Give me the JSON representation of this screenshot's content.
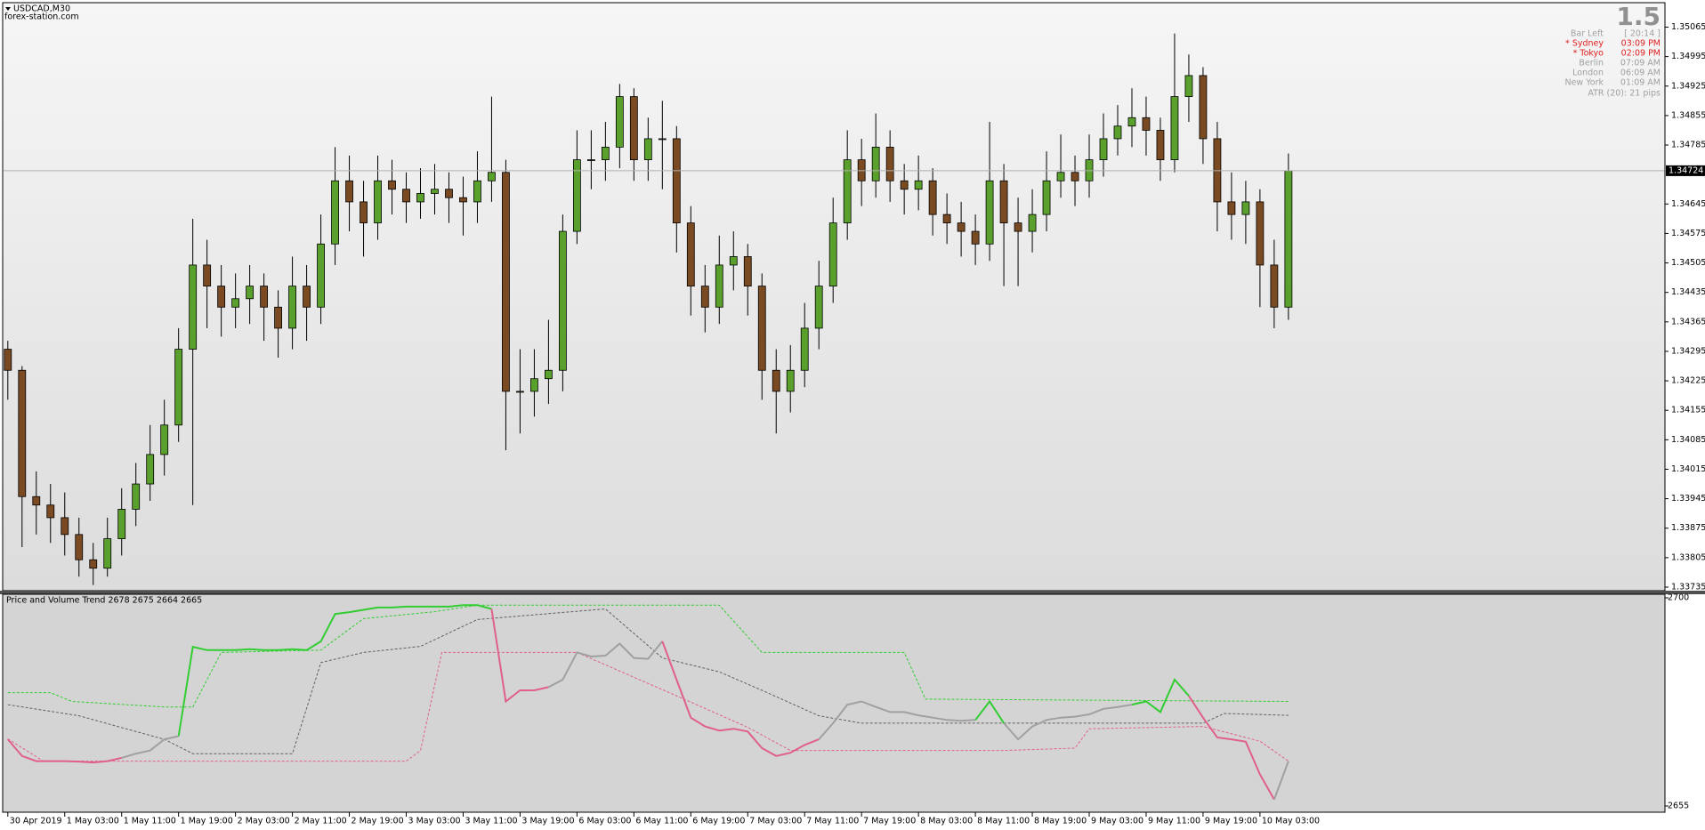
{
  "chart_data": [
    {
      "type": "candlestick",
      "title": "USDCAD,M30",
      "subtitle": "forex-station.com",
      "bull_color": "#5aa02c",
      "bear_color": "#7a4a22",
      "wick_color": "#000000",
      "xlim": [
        -0.3,
        116.4
      ],
      "ylim": [
        1.33735,
        1.35121
      ],
      "yticks": [
        1.33735,
        1.33805,
        1.33875,
        1.33945,
        1.34015,
        1.34085,
        1.34155,
        1.34225,
        1.34295,
        1.34365,
        1.34435,
        1.34505,
        1.34575,
        1.34645,
        1.34785,
        1.34855,
        1.34925,
        1.34995,
        1.35065
      ],
      "xticks": [
        {
          "value": 0,
          "label": "30 Apr 2019"
        },
        {
          "value": 4,
          "label": "1 May 03:00"
        },
        {
          "value": 8,
          "label": "1 May 11:00"
        },
        {
          "value": 12,
          "label": "1 May 19:00"
        },
        {
          "value": 16,
          "label": "2 May 03:00"
        },
        {
          "value": 20,
          "label": "2 May 11:00"
        },
        {
          "value": 24,
          "label": "2 May 19:00"
        },
        {
          "value": 28,
          "label": "3 May 03:00"
        },
        {
          "value": 32,
          "label": "3 May 11:00"
        },
        {
          "value": 36,
          "label": "3 May 19:00"
        },
        {
          "value": 40,
          "label": "6 May 03:00"
        },
        {
          "value": 44,
          "label": "6 May 11:00"
        },
        {
          "value": 48,
          "label": "6 May 19:00"
        },
        {
          "value": 52,
          "label": "7 May 03:00"
        },
        {
          "value": 56,
          "label": "7 May 11:00"
        },
        {
          "value": 60,
          "label": "7 May 19:00"
        },
        {
          "value": 64,
          "label": "8 May 03:00"
        },
        {
          "value": 68,
          "label": "8 May 11:00"
        },
        {
          "value": 72,
          "label": "8 May 19:00"
        },
        {
          "value": 76,
          "label": "9 May 03:00"
        },
        {
          "value": 80,
          "label": "9 May 11:00"
        },
        {
          "value": 84,
          "label": "9 May 19:00"
        },
        {
          "value": 88,
          "label": "10 May 03:00"
        }
      ],
      "current_price": 1.34724,
      "candles": [
        [
          1.343,
          1.3432,
          1.3418,
          1.3425
        ],
        [
          1.3425,
          1.3426,
          1.3383,
          1.3395
        ],
        [
          1.3395,
          1.3401,
          1.3386,
          1.3393
        ],
        [
          1.3393,
          1.3398,
          1.3384,
          1.339
        ],
        [
          1.339,
          1.3396,
          1.3381,
          1.3386
        ],
        [
          1.3386,
          1.339,
          1.3376,
          1.338
        ],
        [
          1.338,
          1.3384,
          1.3374,
          1.3378
        ],
        [
          1.3378,
          1.339,
          1.3376,
          1.3385
        ],
        [
          1.3385,
          1.3397,
          1.3381,
          1.3392
        ],
        [
          1.3392,
          1.3403,
          1.3388,
          1.3398
        ],
        [
          1.3398,
          1.3412,
          1.3394,
          1.3405
        ],
        [
          1.3405,
          1.3418,
          1.34,
          1.3412
        ],
        [
          1.3412,
          1.3435,
          1.3408,
          1.343
        ],
        [
          1.343,
          1.3461,
          1.3393,
          1.345
        ],
        [
          1.345,
          1.3456,
          1.3435,
          1.3445
        ],
        [
          1.3445,
          1.345,
          1.3433,
          1.344
        ],
        [
          1.344,
          1.3448,
          1.3435,
          1.3442
        ],
        [
          1.3442,
          1.345,
          1.3436,
          1.3445
        ],
        [
          1.3445,
          1.3448,
          1.3432,
          1.344
        ],
        [
          1.344,
          1.3444,
          1.3428,
          1.3435
        ],
        [
          1.3435,
          1.3452,
          1.343,
          1.3445
        ],
        [
          1.3445,
          1.345,
          1.3432,
          1.344
        ],
        [
          1.344,
          1.3462,
          1.3436,
          1.3455
        ],
        [
          1.3455,
          1.3478,
          1.345,
          1.347
        ],
        [
          1.347,
          1.3476,
          1.3458,
          1.3465
        ],
        [
          1.3465,
          1.347,
          1.3452,
          1.346
        ],
        [
          1.346,
          1.3476,
          1.3456,
          1.347
        ],
        [
          1.347,
          1.3475,
          1.3462,
          1.3468
        ],
        [
          1.3468,
          1.3472,
          1.346,
          1.3465
        ],
        [
          1.3465,
          1.3473,
          1.3461,
          1.3467
        ],
        [
          1.3467,
          1.3474,
          1.3462,
          1.3468
        ],
        [
          1.3468,
          1.3472,
          1.346,
          1.3466
        ],
        [
          1.3466,
          1.3471,
          1.3457,
          1.3465
        ],
        [
          1.3465,
          1.3477,
          1.346,
          1.347
        ],
        [
          1.347,
          1.349,
          1.3465,
          1.3472
        ],
        [
          1.3472,
          1.3475,
          1.3406,
          1.342
        ],
        [
          1.342,
          1.343,
          1.341,
          1.342
        ],
        [
          1.342,
          1.343,
          1.3414,
          1.3423
        ],
        [
          1.3423,
          1.3437,
          1.3417,
          1.3425
        ],
        [
          1.3425,
          1.3462,
          1.342,
          1.3458
        ],
        [
          1.3458,
          1.3482,
          1.3455,
          1.3475
        ],
        [
          1.3475,
          1.3482,
          1.3468,
          1.3475
        ],
        [
          1.3475,
          1.3484,
          1.347,
          1.3478
        ],
        [
          1.3478,
          1.3493,
          1.3473,
          1.349
        ],
        [
          1.349,
          1.3492,
          1.347,
          1.3475
        ],
        [
          1.3475,
          1.3485,
          1.347,
          1.348
        ],
        [
          1.348,
          1.3489,
          1.3468,
          1.348
        ],
        [
          1.348,
          1.3483,
          1.3453,
          1.346
        ],
        [
          1.346,
          1.3464,
          1.3438,
          1.3445
        ],
        [
          1.3445,
          1.345,
          1.3434,
          1.344
        ],
        [
          1.344,
          1.3457,
          1.3436,
          1.345
        ],
        [
          1.345,
          1.3458,
          1.3444,
          1.3452
        ],
        [
          1.3452,
          1.3455,
          1.3438,
          1.3445
        ],
        [
          1.3445,
          1.3448,
          1.3418,
          1.3425
        ],
        [
          1.3425,
          1.343,
          1.341,
          1.342
        ],
        [
          1.342,
          1.3431,
          1.3415,
          1.3425
        ],
        [
          1.3425,
          1.3441,
          1.3421,
          1.3435
        ],
        [
          1.3435,
          1.3451,
          1.343,
          1.3445
        ],
        [
          1.3445,
          1.3466,
          1.3441,
          1.346
        ],
        [
          1.346,
          1.3482,
          1.3456,
          1.3475
        ],
        [
          1.3475,
          1.348,
          1.3464,
          1.347
        ],
        [
          1.347,
          1.3486,
          1.3466,
          1.3478
        ],
        [
          1.3478,
          1.3482,
          1.3465,
          1.347
        ],
        [
          1.347,
          1.3474,
          1.3462,
          1.3468
        ],
        [
          1.3468,
          1.3476,
          1.3463,
          1.347
        ],
        [
          1.347,
          1.3473,
          1.3457,
          1.3462
        ],
        [
          1.3462,
          1.3467,
          1.3455,
          1.346
        ],
        [
          1.346,
          1.3465,
          1.3452,
          1.3458
        ],
        [
          1.3458,
          1.3462,
          1.345,
          1.3455
        ],
        [
          1.3455,
          1.3484,
          1.3451,
          1.347
        ],
        [
          1.347,
          1.3474,
          1.3445,
          1.346
        ],
        [
          1.346,
          1.3466,
          1.3445,
          1.3458
        ],
        [
          1.3458,
          1.3468,
          1.3453,
          1.3462
        ],
        [
          1.3462,
          1.3477,
          1.3458,
          1.347
        ],
        [
          1.347,
          1.3481,
          1.3466,
          1.3472
        ],
        [
          1.3472,
          1.3476,
          1.3464,
          1.347
        ],
        [
          1.347,
          1.3481,
          1.3466,
          1.3475
        ],
        [
          1.3475,
          1.3486,
          1.3471,
          1.348
        ],
        [
          1.348,
          1.3488,
          1.3476,
          1.3483
        ],
        [
          1.3483,
          1.3492,
          1.3478,
          1.3485
        ],
        [
          1.3485,
          1.349,
          1.3476,
          1.3482
        ],
        [
          1.3482,
          1.3485,
          1.347,
          1.3475
        ],
        [
          1.3475,
          1.3505,
          1.3472,
          1.349
        ],
        [
          1.349,
          1.35,
          1.3484,
          1.3495
        ],
        [
          1.3495,
          1.3497,
          1.3474,
          1.348
        ],
        [
          1.348,
          1.3484,
          1.3458,
          1.3465
        ],
        [
          1.3465,
          1.3472,
          1.3456,
          1.3462
        ],
        [
          1.3462,
          1.347,
          1.3455,
          1.3465
        ],
        [
          1.3465,
          1.3468,
          1.344,
          1.345
        ],
        [
          1.345,
          1.3456,
          1.3435,
          1.344
        ],
        [
          1.344,
          1.34765,
          1.3437,
          1.34724
        ]
      ],
      "info": {
        "big": "1.5",
        "rows": [
          {
            "label": "Bar Left",
            "value": "[ 20:14 ]",
            "color": "#a0a0a0"
          },
          {
            "label": "* Sydney",
            "value": "03:09 PM",
            "color": "#e02020"
          },
          {
            "label": "* Tokyo",
            "value": "02:09 PM",
            "color": "#e02020"
          },
          {
            "label": "Berlin",
            "value": "07:09 AM",
            "color": "#a0a0a0"
          },
          {
            "label": "London",
            "value": "06:09 AM",
            "color": "#a0a0a0"
          },
          {
            "label": "New York",
            "value": "01:09 AM",
            "color": "#a0a0a0"
          }
        ],
        "atr": "ATR (20): 21 pips"
      }
    },
    {
      "type": "line",
      "title": "Price and Volume Trend 2678 2675 2664 2665",
      "ylim": [
        2655,
        2700
      ],
      "yticks": [
        2655,
        2700
      ],
      "values": [
        2669.4,
        2665.8,
        2664.7,
        2664.7,
        2664.7,
        2664.6,
        2664.4,
        2664.7,
        2665.4,
        2666.3,
        2667,
        2669.4,
        2670.1,
        2689.4,
        2688.7,
        2688.7,
        2688.7,
        2688.9,
        2688.7,
        2688.7,
        2688.9,
        2688.7,
        2690.6,
        2696.5,
        2696.9,
        2697.4,
        2697.9,
        2697.9,
        2698.1,
        2698.1,
        2698.1,
        2698.1,
        2698.4,
        2698.4,
        2697.6,
        2677.6,
        2680,
        2680,
        2680.7,
        2682.3,
        2688.2,
        2687.3,
        2687.5,
        2690.1,
        2687,
        2686.8,
        2690.6,
        2682.3,
        2674.1,
        2672.2,
        2671.3,
        2671.7,
        2671.1,
        2667.5,
        2665.8,
        2666.5,
        2668.2,
        2669.4,
        2672.9,
        2676.9,
        2677.6,
        2676.4,
        2675.3,
        2675.3,
        2674.6,
        2674.1,
        2673.6,
        2673.4,
        2673.6,
        2677.6,
        2672.9,
        2669.4,
        2672.2,
        2673.6,
        2674.1,
        2674.3,
        2674.8,
        2676,
        2676.4,
        2676.9,
        2677.6,
        2675.3,
        2682.3,
        2678.8,
        2674.1,
        2669.8,
        2669.4,
        2668.9,
        2661.8,
        2656.4,
        2664.7
      ],
      "color_runs": [
        {
          "from": 0,
          "to": 8,
          "color": "#e0608a"
        },
        {
          "from": 8,
          "to": 12,
          "color": "#a0a0a0"
        },
        {
          "from": 12,
          "to": 34,
          "color": "#32cd32"
        },
        {
          "from": 34,
          "to": 38,
          "color": "#e0608a"
        },
        {
          "from": 38,
          "to": 46,
          "color": "#a0a0a0"
        },
        {
          "from": 46,
          "to": 57,
          "color": "#e0608a"
        },
        {
          "from": 57,
          "to": 68,
          "color": "#a0a0a0"
        },
        {
          "from": 68,
          "to": 70,
          "color": "#32cd32"
        },
        {
          "from": 70,
          "to": 79,
          "color": "#a0a0a0"
        },
        {
          "from": 79,
          "to": 83,
          "color": "#32cd32"
        },
        {
          "from": 83,
          "to": 89,
          "color": "#e0608a"
        },
        {
          "from": 89,
          "to": 90,
          "color": "#a0a0a0"
        }
      ],
      "lines": [
        {
          "color": "#32cd32",
          "dashed": true,
          "x": [
            0,
            3,
            4.5,
            11,
            13,
            15,
            22,
            25,
            30,
            33,
            50,
            53,
            63,
            64.5,
            90
          ],
          "values": [
            2679.5,
            2679.5,
            2677.6,
            2676.4,
            2676.4,
            2688.2,
            2688.7,
            2695.5,
            2697,
            2698.4,
            2698.4,
            2688.2,
            2688.2,
            2678.1,
            2677.6
          ]
        },
        {
          "color": "#606060",
          "dashed": true,
          "x": [
            0,
            5,
            11,
            13,
            20,
            22,
            25,
            29,
            33,
            42,
            46,
            50,
            53,
            57,
            60,
            84,
            85.5,
            90
          ],
          "values": [
            2676.9,
            2674.5,
            2669.4,
            2666.3,
            2666.3,
            2686,
            2688.2,
            2689.5,
            2695.3,
            2697.6,
            2687,
            2684,
            2680,
            2674.5,
            2672.9,
            2672.9,
            2675,
            2674.6
          ]
        },
        {
          "color": "#e0608a",
          "dashed": true,
          "x": [
            0,
            2.5,
            28,
            29,
            30.5,
            34,
            40,
            47,
            52,
            55,
            70,
            75,
            76,
            84,
            88,
            90
          ],
          "values": [
            2669.5,
            2664.7,
            2664.7,
            2667,
            2688.2,
            2688.2,
            2688.2,
            2678.8,
            2672,
            2667,
            2667,
            2667.5,
            2671.7,
            2672.2,
            2669,
            2664.7
          ]
        }
      ]
    }
  ]
}
